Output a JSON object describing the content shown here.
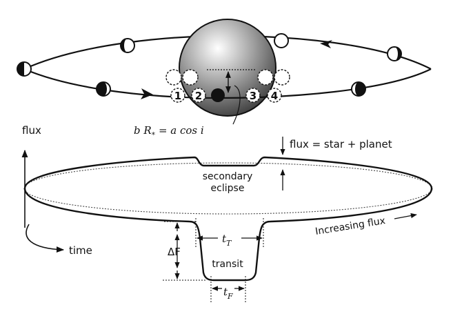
{
  "diagram": {
    "labels": {
      "impact": "b R",
      "impact_sub": "*",
      "impact_rest": " = a cos i",
      "flux_axis": "flux",
      "time_axis": "time",
      "flux_eq": "flux = star + planet",
      "secondary_1": "secondary",
      "secondary_2": "eclipse",
      "increasing": "Increasing flux",
      "transit": "transit",
      "delta_f": "ΔF",
      "t_T_base": "t",
      "t_T_sub": "T",
      "t_F_base": "t",
      "t_F_sub": "F"
    },
    "contact_points": [
      "1",
      "2",
      "3",
      "4"
    ]
  }
}
